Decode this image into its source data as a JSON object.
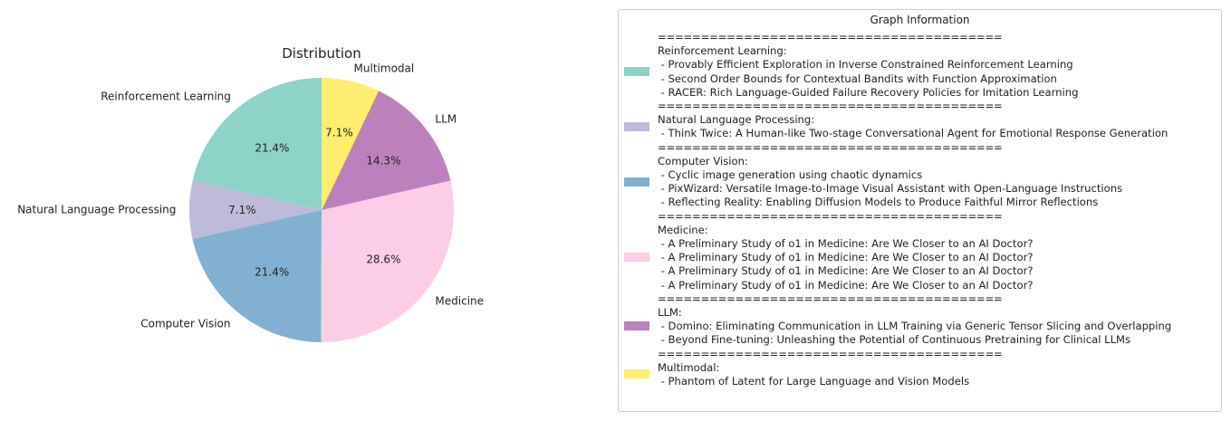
{
  "chart_data": {
    "type": "pie",
    "title": "Distribution",
    "slices": [
      {
        "label": "Reinforcement Learning",
        "value": 21.4,
        "pct_label": "21.4%",
        "color": "#8dd3c7"
      },
      {
        "label": "Natural Language Processing",
        "value": 7.1,
        "pct_label": "7.1%",
        "color": "#bebada"
      },
      {
        "label": "Computer Vision",
        "value": 21.4,
        "pct_label": "21.4%",
        "color": "#80b1d3"
      },
      {
        "label": "Medicine",
        "value": 28.6,
        "pct_label": "28.6%",
        "color": "#fccde5"
      },
      {
        "label": "LLM",
        "value": 14.3,
        "pct_label": "14.3%",
        "color": "#bc80bd"
      },
      {
        "label": "Multimodal",
        "value": 7.1,
        "pct_label": "7.1%",
        "color": "#ffed6f"
      }
    ],
    "start_angle_deg": 90,
    "direction": "counterclockwise"
  },
  "legend": {
    "title": "Graph Information",
    "separator": "========================================",
    "entries": [
      {
        "category": "Reinforcement Learning:",
        "color": "#8dd3c7",
        "papers": [
          " - Provably Efficient Exploration in Inverse Constrained Reinforcement Learning",
          " - Second Order Bounds for Contextual Bandits with Function Approximation",
          " - RACER: Rich Language-Guided Failure Recovery Policies for Imitation Learning"
        ]
      },
      {
        "category": "Natural Language Processing:",
        "color": "#bebada",
        "papers": [
          " - Think Twice: A Human-like Two-stage Conversational Agent for Emotional Response Generation"
        ]
      },
      {
        "category": "Computer Vision:",
        "color": "#80b1d3",
        "papers": [
          " - Cyclic image generation using chaotic dynamics",
          " - PixWizard: Versatile Image-to-Image Visual Assistant with Open-Language Instructions",
          " - Reflecting Reality: Enabling Diffusion Models to Produce Faithful Mirror Reflections"
        ]
      },
      {
        "category": "Medicine:",
        "color": "#fccde5",
        "papers": [
          " - A Preliminary Study of o1 in Medicine: Are We Closer to an AI Doctor?",
          " - A Preliminary Study of o1 in Medicine: Are We Closer to an AI Doctor?",
          " - A Preliminary Study of o1 in Medicine: Are We Closer to an AI Doctor?",
          " - A Preliminary Study of o1 in Medicine: Are We Closer to an AI Doctor?"
        ]
      },
      {
        "category": "LLM:",
        "color": "#bc80bd",
        "papers": [
          " - Domino: Eliminating Communication in LLM Training via Generic Tensor Slicing and Overlapping",
          " - Beyond Fine-tuning: Unleashing the Potential of Continuous Pretraining for Clinical LLMs"
        ]
      },
      {
        "category": "Multimodal:",
        "color": "#ffed6f",
        "papers": [
          " - Phantom of Latent for Large Language and Vision Models"
        ]
      }
    ]
  }
}
